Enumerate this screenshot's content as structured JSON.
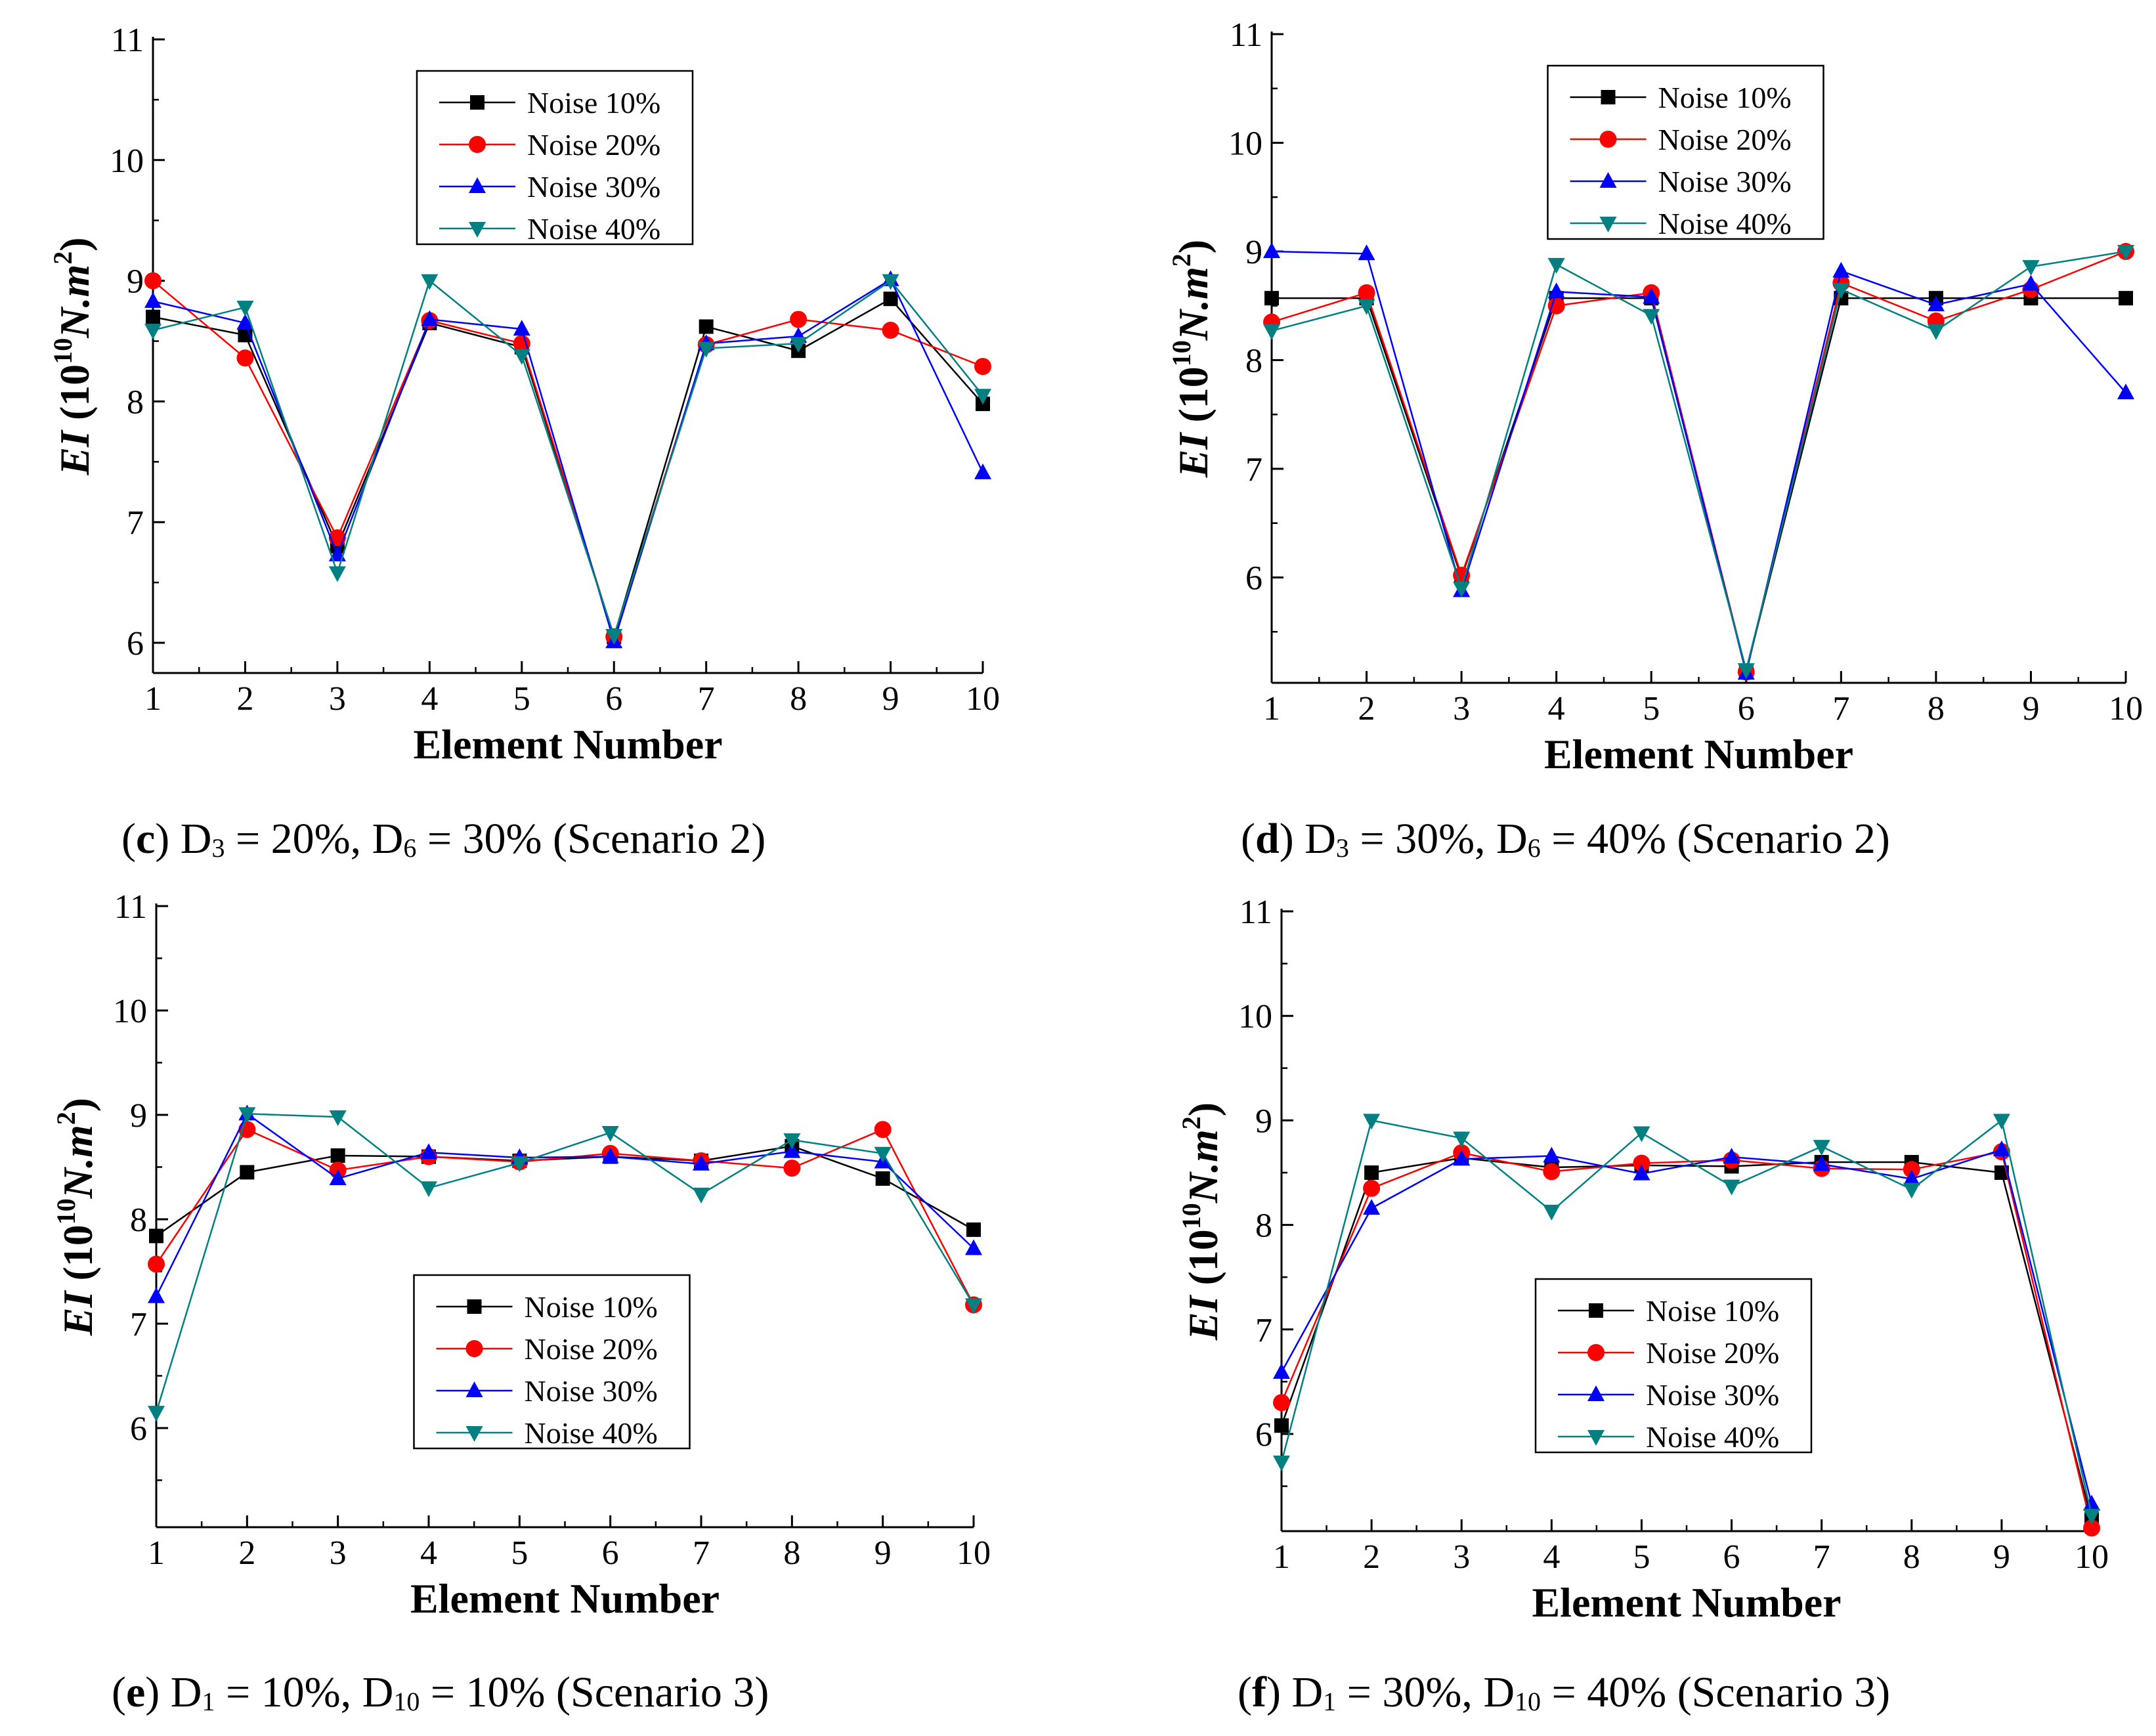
{
  "colors": {
    "noise10": "#000000",
    "noise20": "#ff0000",
    "noise30": "#0000ff",
    "noise40": "#008080"
  },
  "chart_data": [
    {
      "id": "c",
      "type": "line",
      "caption": {
        "letter": "c",
        "d1": "D",
        "s1": "3",
        "m1": " = 20%, D",
        "s2": "6",
        "m2": " = 30% (Scenario 2)"
      },
      "xlabel": "Element Number",
      "ylabel_main": "EI",
      "ylabel_unit": "(10",
      "ylabel_exp": "10",
      "ylabel_tail": "N.m",
      "ylabel_exp2": "2",
      "ylabel_close": ")",
      "x": [
        1,
        2,
        3,
        4,
        5,
        6,
        7,
        8,
        9,
        10
      ],
      "xlim": [
        1,
        10
      ],
      "ylim": [
        5.75,
        11
      ],
      "yticks": [
        6,
        7,
        8,
        9,
        10,
        11
      ],
      "xticks": [
        1,
        2,
        3,
        4,
        5,
        6,
        7,
        8,
        9,
        10
      ],
      "legend": "top-center",
      "series": [
        {
          "name": "Noise 10%",
          "marker": "square",
          "values": [
            8.7,
            8.55,
            6.8,
            8.65,
            8.45,
            6.05,
            8.62,
            8.42,
            8.85,
            7.98
          ]
        },
        {
          "name": "Noise 20%",
          "marker": "circle",
          "values": [
            9.0,
            8.36,
            6.87,
            8.67,
            8.48,
            6.05,
            8.47,
            8.68,
            8.59,
            8.29
          ]
        },
        {
          "name": "Noise 30%",
          "marker": "triangle-up",
          "values": [
            8.83,
            8.65,
            6.73,
            8.68,
            8.6,
            6.01,
            8.48,
            8.54,
            9.01,
            7.41
          ]
        },
        {
          "name": "Noise 40%",
          "marker": "triangle-down",
          "values": [
            8.59,
            8.78,
            6.58,
            9.0,
            8.38,
            6.06,
            8.44,
            8.48,
            9.0,
            8.05
          ]
        }
      ]
    },
    {
      "id": "d",
      "type": "line",
      "caption": {
        "letter": "d",
        "d1": "D",
        "s1": "3",
        "m1": " = 30%, D",
        "s2": "6",
        "m2": " = 40% (Scenario 2)"
      },
      "xlabel": "Element Number",
      "ylabel_main": "EI",
      "ylabel_unit": "(10",
      "ylabel_exp": "10",
      "ylabel_tail": "N.m",
      "ylabel_exp2": "2",
      "ylabel_close": ")",
      "x": [
        1,
        2,
        3,
        4,
        5,
        6,
        7,
        8,
        9,
        10
      ],
      "xlim": [
        1,
        10
      ],
      "ylim": [
        5.03,
        11
      ],
      "yticks": [
        6,
        7,
        8,
        9,
        10,
        11
      ],
      "xticks": [
        1,
        2,
        3,
        4,
        5,
        6,
        7,
        8,
        9,
        10
      ],
      "legend": "top-center",
      "series": [
        {
          "name": "Noise 10%",
          "marker": "square",
          "values": [
            8.57,
            8.57,
            6.0,
            8.57,
            8.57,
            5.14,
            8.57,
            8.57,
            8.57,
            8.57
          ]
        },
        {
          "name": "Noise 20%",
          "marker": "circle",
          "values": [
            8.35,
            8.62,
            6.02,
            8.5,
            8.62,
            5.13,
            8.71,
            8.36,
            8.65,
            9.0
          ]
        },
        {
          "name": "Noise 30%",
          "marker": "triangle-up",
          "values": [
            9.0,
            8.98,
            5.88,
            8.63,
            8.58,
            5.12,
            8.82,
            8.51,
            8.7,
            7.7
          ]
        },
        {
          "name": "Noise 40%",
          "marker": "triangle-down",
          "values": [
            8.27,
            8.5,
            5.9,
            8.88,
            8.41,
            5.15,
            8.65,
            8.27,
            8.86,
            9.0
          ]
        }
      ]
    },
    {
      "id": "e",
      "type": "line",
      "caption": {
        "letter": "e",
        "d1": "D",
        "s1": "1",
        "m1": " = 10%, D",
        "s2": "10",
        "m2": " = 10% (Scenario 3)"
      },
      "xlabel": "Element Number",
      "ylabel_main": "EI",
      "ylabel_unit": "(10",
      "ylabel_exp": "10",
      "ylabel_tail": "N.m",
      "ylabel_exp2": "2",
      "ylabel_close": ")",
      "x": [
        1,
        2,
        3,
        4,
        5,
        6,
        7,
        8,
        9,
        10
      ],
      "xlim": [
        1,
        10
      ],
      "ylim": [
        5.05,
        11
      ],
      "yticks": [
        6,
        7,
        8,
        9,
        10,
        11
      ],
      "xticks": [
        1,
        2,
        3,
        4,
        5,
        6,
        7,
        8,
        9,
        10
      ],
      "legend": "bottom-center",
      "series": [
        {
          "name": "Noise 10%",
          "marker": "square",
          "values": [
            7.84,
            8.45,
            8.61,
            8.6,
            8.56,
            8.6,
            8.56,
            8.7,
            8.39,
            7.9
          ]
        },
        {
          "name": "Noise 20%",
          "marker": "circle",
          "values": [
            7.57,
            8.86,
            8.47,
            8.6,
            8.55,
            8.63,
            8.56,
            8.49,
            8.86,
            7.18
          ]
        },
        {
          "name": "Noise 30%",
          "marker": "triangle-up",
          "values": [
            7.26,
            9.01,
            8.39,
            8.64,
            8.59,
            8.6,
            8.53,
            8.65,
            8.55,
            7.72
          ]
        },
        {
          "name": "Noise 40%",
          "marker": "triangle-down",
          "values": [
            6.15,
            9.01,
            8.98,
            8.3,
            8.54,
            8.83,
            8.24,
            8.76,
            8.63,
            7.18
          ]
        }
      ]
    },
    {
      "id": "f",
      "type": "line",
      "caption": {
        "letter": "f",
        "d1": "D",
        "s1": "1",
        "m1": " = 30%, D",
        "s2": "10",
        "m2": " = 40% (Scenario 3)"
      },
      "xlabel": "Element Number",
      "ylabel_main": "EI",
      "ylabel_unit": "(10",
      "ylabel_exp": "10",
      "ylabel_tail": "N.m",
      "ylabel_exp2": "2",
      "ylabel_close": ")",
      "x": [
        1,
        2,
        3,
        4,
        5,
        6,
        7,
        8,
        9,
        10
      ],
      "xlim": [
        1,
        10
      ],
      "ylim": [
        5.07,
        11
      ],
      "yticks": [
        6,
        7,
        8,
        9,
        10,
        11
      ],
      "xticks": [
        1,
        2,
        3,
        4,
        5,
        6,
        7,
        8,
        9,
        10
      ],
      "legend": "bottom-center",
      "series": [
        {
          "name": "Noise 10%",
          "marker": "square",
          "values": [
            6.08,
            8.5,
            8.64,
            8.55,
            8.57,
            8.56,
            8.6,
            8.6,
            8.5,
            5.18
          ]
        },
        {
          "name": "Noise 20%",
          "marker": "circle",
          "values": [
            6.3,
            8.35,
            8.69,
            8.51,
            8.59,
            8.62,
            8.54,
            8.53,
            8.7,
            5.1
          ]
        },
        {
          "name": "Noise 30%",
          "marker": "triangle-up",
          "values": [
            6.59,
            8.16,
            8.63,
            8.66,
            8.49,
            8.65,
            8.58,
            8.44,
            8.72,
            5.33
          ]
        },
        {
          "name": "Noise 40%",
          "marker": "triangle-down",
          "values": [
            5.73,
            9.0,
            8.83,
            8.13,
            8.88,
            8.37,
            8.75,
            8.34,
            9.0,
            5.22
          ]
        }
      ]
    }
  ]
}
